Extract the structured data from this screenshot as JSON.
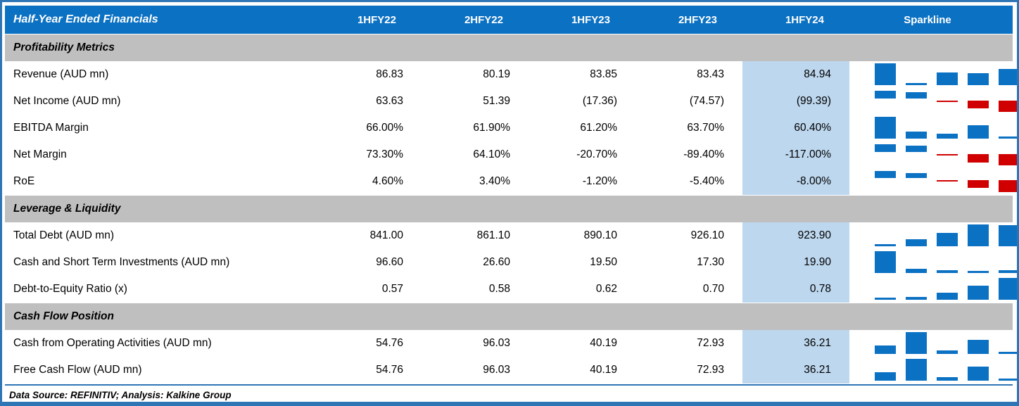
{
  "colors": {
    "header_bg": "#0B71C3",
    "header_text": "#FFFFFF",
    "section_bg": "#BFBFBF",
    "highlight_bg": "#BDD7EE",
    "spark_positive": "#0B71C3",
    "spark_negative": "#D00000",
    "border_blue": "#2E75B6"
  },
  "chart_data": {
    "type": "table",
    "title": "Half-Year Ended Financials",
    "columns": [
      "1HFY22",
      "2HFY22",
      "1HFY23",
      "2HFY23",
      "1HFY24"
    ],
    "highlight_column": "1HFY24",
    "sparkline": {
      "header": "Sparkline",
      "style": "column",
      "positive_color": "#0B71C3",
      "negative_color": "#D00000"
    },
    "sections": [
      {
        "label": "Profitability Metrics",
        "rows": [
          {
            "label": "Revenue (AUD mn)",
            "values": [
              "86.83",
              "80.19",
              "83.85",
              "83.43",
              "84.94"
            ]
          },
          {
            "label": "Net Income (AUD mn)",
            "values": [
              "63.63",
              "51.39",
              "(17.36)",
              "(74.57)",
              "(99.39)"
            ]
          },
          {
            "label": "EBITDA Margin",
            "values": [
              "66.00%",
              "61.90%",
              "61.20%",
              "63.70%",
              "60.40%"
            ]
          },
          {
            "label": "Net Margin",
            "values": [
              "73.30%",
              "64.10%",
              "-20.70%",
              "-89.40%",
              "-117.00%"
            ]
          },
          {
            "label": "RoE",
            "values": [
              "4.60%",
              "3.40%",
              "-1.20%",
              "-5.40%",
              "-8.00%"
            ]
          }
        ]
      },
      {
        "label": "Leverage & Liquidity",
        "rows": [
          {
            "label": "Total Debt (AUD mn)",
            "values": [
              "841.00",
              "861.10",
              "890.10",
              "926.10",
              "923.90"
            ]
          },
          {
            "label": "Cash and Short Term Investments (AUD mn)",
            "values": [
              "96.60",
              "26.60",
              "19.50",
              "17.30",
              "19.90"
            ]
          },
          {
            "label": "Debt-to-Equity Ratio (x)",
            "values": [
              "0.57",
              "0.58",
              "0.62",
              "0.70",
              "0.78"
            ]
          }
        ]
      },
      {
        "label": "Cash Flow Position",
        "rows": [
          {
            "label": "Cash from Operating Activities (AUD mn)",
            "values": [
              "54.76",
              "96.03",
              "40.19",
              "72.93",
              "36.21"
            ]
          },
          {
            "label": "Free Cash Flow (AUD mn)",
            "values": [
              "54.76",
              "96.03",
              "40.19",
              "72.93",
              "36.21"
            ]
          }
        ]
      }
    ],
    "footer": "Data Source: REFINITIV; Analysis: Kalkine Group"
  }
}
